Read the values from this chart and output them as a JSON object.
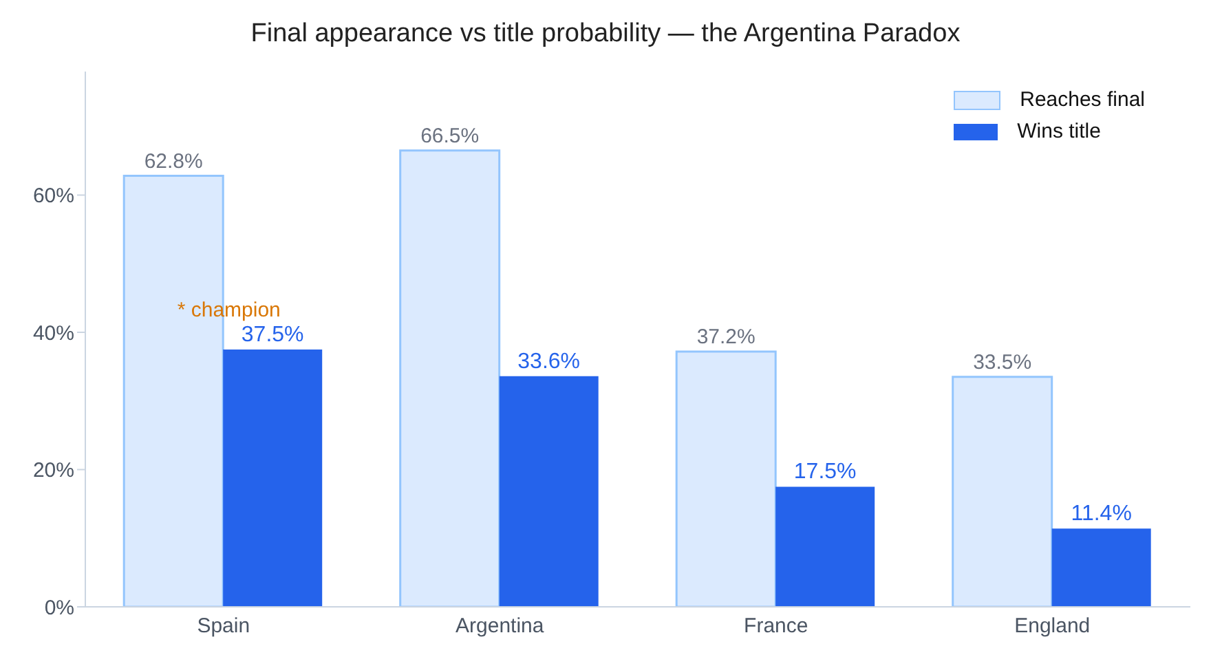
{
  "chart_data": {
    "type": "bar",
    "title": "Final appearance vs title probability — the Argentina Paradox",
    "categories": [
      "Spain",
      "Argentina",
      "France",
      "England"
    ],
    "series": [
      {
        "name": "Reaches final",
        "color": "#dbeafe",
        "values": [
          62.8,
          66.5,
          37.2,
          33.5
        ],
        "value_labels": [
          "62.8%",
          "66.5%",
          "37.2%",
          "33.5%"
        ]
      },
      {
        "name": "Wins title",
        "color": "#2563eb",
        "values": [
          37.5,
          33.6,
          17.5,
          11.4
        ],
        "value_labels": [
          "37.5%",
          "33.6%",
          "17.5%",
          "11.4%"
        ]
      }
    ],
    "ylim": [
      0,
      78
    ],
    "yticks": [
      {
        "value": 0,
        "label": "0%"
      },
      {
        "value": 20,
        "label": "20%"
      },
      {
        "value": 40,
        "label": "40%"
      },
      {
        "value": 60,
        "label": "60%"
      }
    ],
    "annotations": [
      {
        "text": "* champion",
        "x": "Spain",
        "y": 37.5
      }
    ],
    "grid": false,
    "legend": "top right"
  }
}
